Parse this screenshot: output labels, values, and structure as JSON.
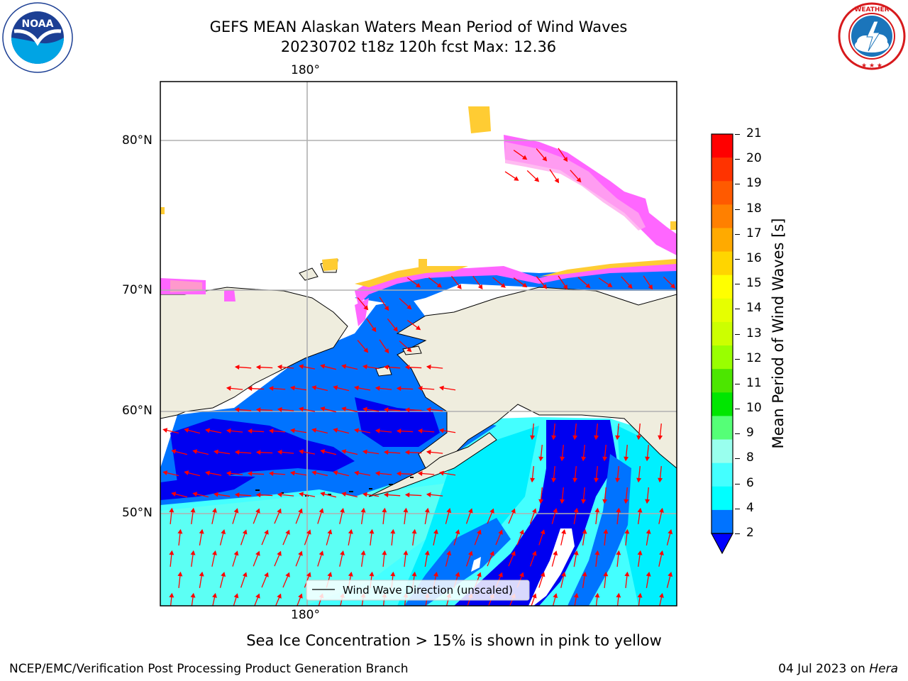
{
  "title_line1": "GEFS MEAN Alaskan Waters Mean Period of Wind Waves",
  "title_line2": "20230702 t18z 120h fcst   Max: 12.36",
  "logos": {
    "noaa_text": "NOAA",
    "noaa_ring": "NATIONAL OCEANIC AND ATMOSPHERIC ADMINISTRATION · U.S. DEPARTMENT OF COMMERCE",
    "nws_ring": "NATIONAL WEATHER SERVICE"
  },
  "map": {
    "lon_top_label": "180°",
    "lon_bottom_label": "180°",
    "lat_labels": [
      "80°N",
      "70°N",
      "60°N",
      "50°N"
    ],
    "legend_label": "Wind Wave Direction (unscaled)",
    "colors": {
      "land": "#efedde",
      "ice_pink": "#ff66ff",
      "ice_yellow": "#ffcc33",
      "blue_2_4": "#0073ff",
      "deep_blue": "#0000f0",
      "cyan_4_6": "#00f0ff",
      "cyan_6_8": "#44ffff",
      "arrow": "#ff0000"
    }
  },
  "colorbar": {
    "label": "Mean Period of Wind Waves [s]",
    "ticks": [
      "21",
      "20",
      "19",
      "18",
      "17",
      "16",
      "15",
      "14",
      "13",
      "12",
      "11",
      "10",
      "9",
      "8",
      "6",
      "4",
      "2"
    ],
    "colors": [
      "#ff0000",
      "#ff3300",
      "#ff5a00",
      "#ff8000",
      "#ffaa00",
      "#ffd500",
      "#ffff00",
      "#e6ff00",
      "#ccff00",
      "#99ff00",
      "#4ce600",
      "#00e600",
      "#55ff77",
      "#99ffee",
      "#44ffff",
      "#00ffff",
      "#0073ff"
    ],
    "extend_color": "#0000ff"
  },
  "footer_note": "Sea Ice Concentration > 15% is shown in pink to yellow",
  "footer_left": "NCEP/EMC/Verification Post Processing Product Generation Branch",
  "footer_date": "04 Jul 2023 on",
  "footer_host": "Hera"
}
